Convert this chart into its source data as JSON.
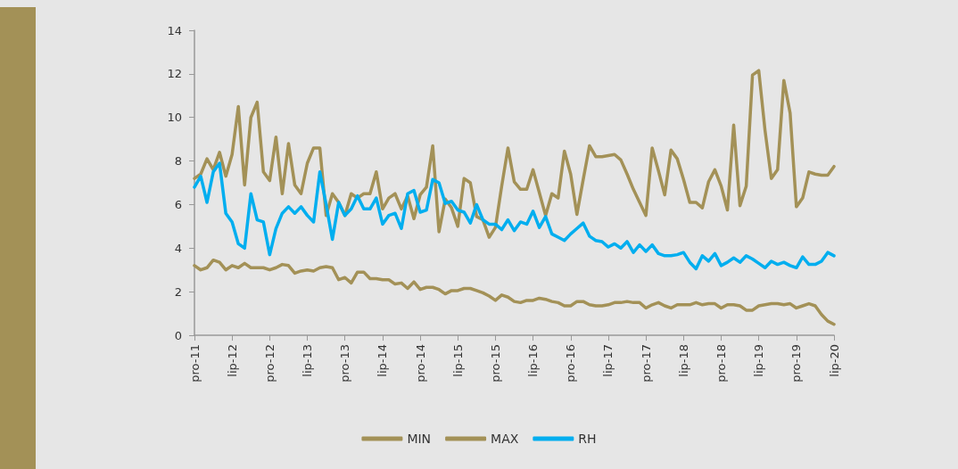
{
  "chart_data": {
    "type": "line",
    "categories": [
      "pro-11",
      null,
      null,
      null,
      null,
      null,
      "lip-12",
      null,
      null,
      null,
      null,
      null,
      "pro-12",
      null,
      null,
      null,
      null,
      null,
      "lip-13",
      null,
      null,
      null,
      null,
      null,
      "pro-13",
      null,
      null,
      null,
      null,
      null,
      "lip-14",
      null,
      null,
      null,
      null,
      null,
      "pro-14",
      null,
      null,
      null,
      null,
      null,
      "lip-15",
      null,
      null,
      null,
      null,
      null,
      "pro-15",
      null,
      null,
      null,
      null,
      null,
      "lip-16",
      null,
      null,
      null,
      null,
      null,
      "pro-16",
      null,
      null,
      null,
      null,
      null,
      "lip-17",
      null,
      null,
      null,
      null,
      null,
      "pro-17",
      null,
      null,
      null,
      null,
      null,
      "lip-18",
      null,
      null,
      null,
      null,
      null,
      "pro-18",
      null,
      null,
      null,
      null,
      null,
      "lip-19",
      null,
      null,
      null,
      null,
      null,
      "pro-19",
      null,
      null,
      null,
      null,
      null,
      "lip-20"
    ],
    "series": [
      {
        "name": "MIN",
        "color": "#a39157",
        "values": [
          3.2,
          3.0,
          3.1,
          3.45,
          3.35,
          3.0,
          3.2,
          3.1,
          3.3,
          3.1,
          3.1,
          3.1,
          3.0,
          3.1,
          3.25,
          3.2,
          2.85,
          2.95,
          3.0,
          2.95,
          3.1,
          3.15,
          3.1,
          2.55,
          2.65,
          2.4,
          2.9,
          2.9,
          2.6,
          2.6,
          2.55,
          2.55,
          2.35,
          2.4,
          2.15,
          2.45,
          2.1,
          2.2,
          2.2,
          2.1,
          1.9,
          2.05,
          2.05,
          2.15,
          2.15,
          2.05,
          1.95,
          1.8,
          1.6,
          1.85,
          1.75,
          1.55,
          1.5,
          1.6,
          1.6,
          1.7,
          1.65,
          1.55,
          1.5,
          1.35,
          1.35,
          1.55,
          1.55,
          1.4,
          1.35,
          1.35,
          1.4,
          1.5,
          1.5,
          1.55,
          1.5,
          1.5,
          1.25,
          1.4,
          1.5,
          1.35,
          1.25,
          1.4,
          1.4,
          1.4,
          1.5,
          1.4,
          1.45,
          1.45,
          1.25,
          1.4,
          1.4,
          1.35,
          1.15,
          1.15,
          1.35,
          1.4,
          1.45,
          1.45,
          1.4,
          1.45,
          1.25,
          1.35,
          1.45,
          1.35,
          0.95,
          0.65,
          0.5
        ]
      },
      {
        "name": "MAX",
        "color": "#a39157",
        "values": [
          7.2,
          7.4,
          8.1,
          7.6,
          8.4,
          7.3,
          8.3,
          10.5,
          6.9,
          10.0,
          10.7,
          7.5,
          7.1,
          9.1,
          6.5,
          8.8,
          6.9,
          6.5,
          7.9,
          8.6,
          8.6,
          5.5,
          6.5,
          6.1,
          5.5,
          6.5,
          6.3,
          6.5,
          6.5,
          7.5,
          5.8,
          6.3,
          6.5,
          5.8,
          6.4,
          5.35,
          6.45,
          6.8,
          8.7,
          4.75,
          6.25,
          5.85,
          5.0,
          7.2,
          7.0,
          5.45,
          5.3,
          4.5,
          4.95,
          6.85,
          8.6,
          7.05,
          6.7,
          6.7,
          7.6,
          6.55,
          5.5,
          6.5,
          6.3,
          8.45,
          7.4,
          5.55,
          7.15,
          8.7,
          8.2,
          8.2,
          8.25,
          8.3,
          8.05,
          7.4,
          6.7,
          6.1,
          5.5,
          8.6,
          7.55,
          6.45,
          8.5,
          8.1,
          7.15,
          6.1,
          6.1,
          5.85,
          7.05,
          7.6,
          6.85,
          5.75,
          9.65,
          5.95,
          6.85,
          11.95,
          12.15,
          9.4,
          7.2,
          7.6,
          11.7,
          10.2,
          5.9,
          6.3,
          7.5,
          7.4,
          7.35,
          7.35,
          7.75
        ]
      },
      {
        "name": "RH",
        "color": "#00aeef",
        "values": [
          6.8,
          7.3,
          6.1,
          7.5,
          7.9,
          5.6,
          5.2,
          4.2,
          4.0,
          6.5,
          5.3,
          5.2,
          3.7,
          4.9,
          5.6,
          5.9,
          5.6,
          5.9,
          5.5,
          5.2,
          7.5,
          6.0,
          4.4,
          6.1,
          5.5,
          5.8,
          6.4,
          5.8,
          5.8,
          6.3,
          5.1,
          5.5,
          5.6,
          4.9,
          6.5,
          6.65,
          5.65,
          5.75,
          7.15,
          7.0,
          6.05,
          6.15,
          5.75,
          5.65,
          5.15,
          6.0,
          5.3,
          5.1,
          5.1,
          4.85,
          5.3,
          4.8,
          5.2,
          5.1,
          5.7,
          4.95,
          5.45,
          4.65,
          4.5,
          4.35,
          4.65,
          4.9,
          5.15,
          4.55,
          4.35,
          4.3,
          4.05,
          4.2,
          4.0,
          4.3,
          3.8,
          4.15,
          3.85,
          4.15,
          3.75,
          3.65,
          3.65,
          3.7,
          3.8,
          3.35,
          3.05,
          3.65,
          3.4,
          3.75,
          3.2,
          3.35,
          3.55,
          3.35,
          3.65,
          3.5,
          3.3,
          3.1,
          3.4,
          3.25,
          3.35,
          3.2,
          3.1,
          3.6,
          3.25,
          3.25,
          3.4,
          3.8,
          3.65
        ]
      }
    ],
    "ylim": [
      0,
      14
    ],
    "yticks": [
      0,
      2,
      4,
      6,
      8,
      10,
      12,
      14
    ],
    "grid": false,
    "legend": "bottom",
    "marker": "none",
    "line_style": "solid"
  }
}
